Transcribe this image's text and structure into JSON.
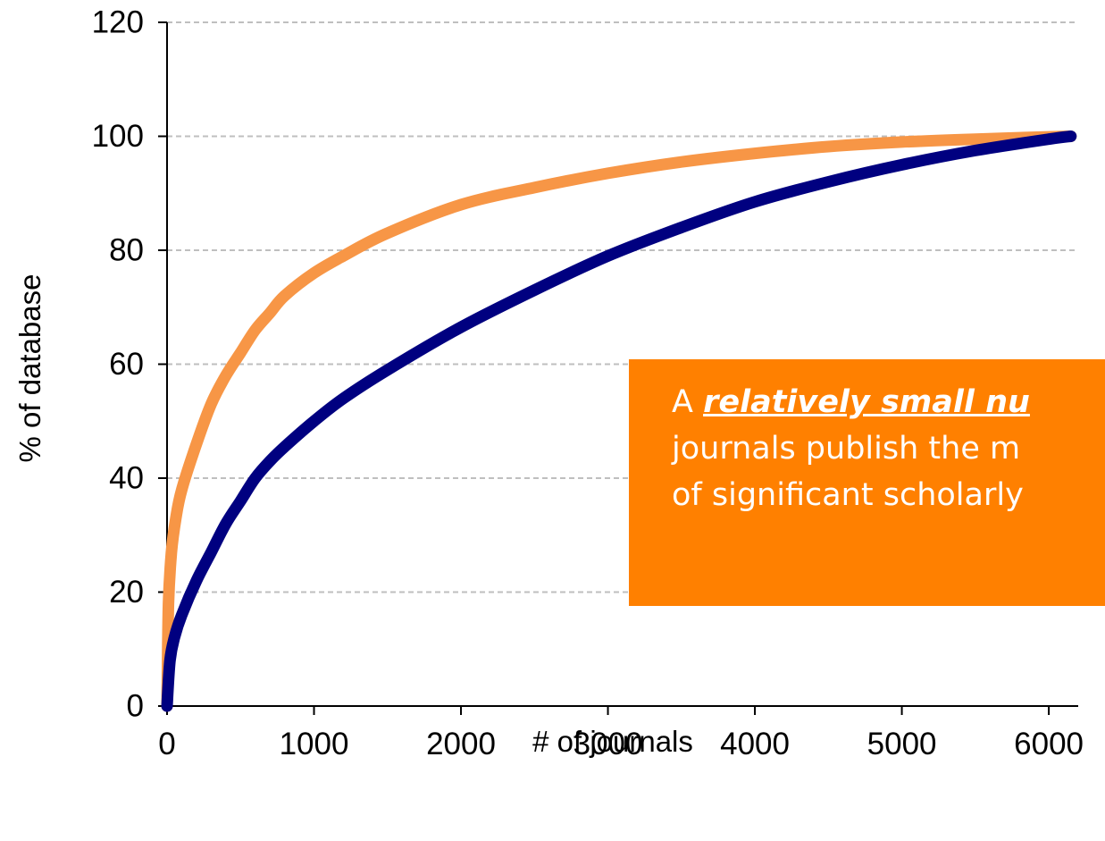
{
  "chart_data": {
    "type": "line",
    "xlabel": "# of journals",
    "ylabel": "% of database",
    "xlim": [
      0,
      6200
    ],
    "ylim": [
      0,
      120
    ],
    "xticks": [
      0,
      1000,
      2000,
      3000,
      4000,
      5000,
      6000
    ],
    "yticks": [
      0,
      20,
      40,
      60,
      80,
      100,
      120
    ],
    "grid": "horizontal dashed",
    "legend": "none",
    "series": [
      {
        "color": "#F79646",
        "points": [
          [
            0,
            0
          ],
          [
            10,
            18
          ],
          [
            30,
            27
          ],
          [
            60,
            33
          ],
          [
            100,
            38
          ],
          [
            200,
            46
          ],
          [
            300,
            53
          ],
          [
            400,
            58
          ],
          [
            500,
            62
          ],
          [
            600,
            66
          ],
          [
            700,
            69
          ],
          [
            800,
            72
          ],
          [
            1000,
            76
          ],
          [
            1200,
            79
          ],
          [
            1500,
            83
          ],
          [
            2000,
            88
          ],
          [
            2500,
            91
          ],
          [
            3000,
            93.5
          ],
          [
            3500,
            95.5
          ],
          [
            4000,
            97
          ],
          [
            4500,
            98.2
          ],
          [
            5000,
            99
          ],
          [
            5500,
            99.5
          ],
          [
            6000,
            99.9
          ],
          [
            6150,
            100
          ]
        ]
      },
      {
        "color": "#000080",
        "points": [
          [
            0,
            0
          ],
          [
            20,
            8
          ],
          [
            50,
            12
          ],
          [
            100,
            16
          ],
          [
            200,
            22
          ],
          [
            300,
            27
          ],
          [
            400,
            32
          ],
          [
            500,
            36
          ],
          [
            600,
            40
          ],
          [
            700,
            43
          ],
          [
            800,
            45.5
          ],
          [
            1000,
            50
          ],
          [
            1200,
            54
          ],
          [
            1500,
            59
          ],
          [
            2000,
            66.5
          ],
          [
            2500,
            73
          ],
          [
            3000,
            79
          ],
          [
            3500,
            84
          ],
          [
            4000,
            88.5
          ],
          [
            4500,
            92
          ],
          [
            5000,
            95
          ],
          [
            5500,
            97.5
          ],
          [
            6000,
            99.5
          ],
          [
            6150,
            100
          ]
        ]
      }
    ]
  },
  "callout": {
    "prefix": "A ",
    "emphasis": "relatively small nu",
    "line2": "journals publish the m",
    "line3": "of significant scholarly",
    "background": "#FF8000"
  }
}
